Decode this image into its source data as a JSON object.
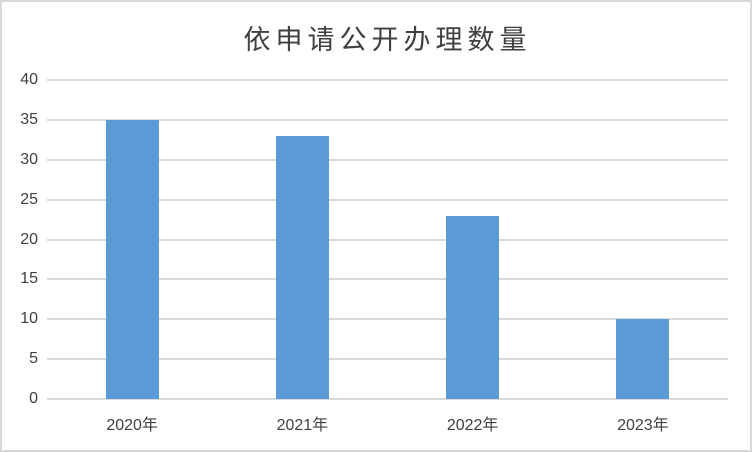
{
  "chart_data": {
    "type": "bar",
    "title": "依申请公开办理数量",
    "categories": [
      "2020年",
      "2021年",
      "2022年",
      "2023年"
    ],
    "values": [
      35,
      33,
      23,
      10
    ],
    "y_ticks": [
      0,
      5,
      10,
      15,
      20,
      25,
      30,
      35,
      40
    ],
    "ylim": [
      0,
      40
    ],
    "xlabel": "",
    "ylabel": "",
    "grid": true,
    "legend": "none",
    "bar_color": "#5B9BD5",
    "gridline_color": "#D9D9D9",
    "axis_line_color": "#D9D9D9",
    "text_color": "#404040",
    "border_color": "#D9D9D9",
    "background_color": "#FFFFFF"
  }
}
